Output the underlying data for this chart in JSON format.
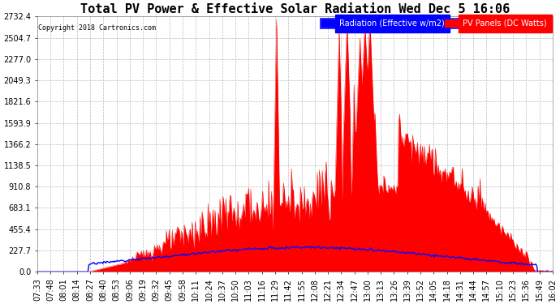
{
  "title": "Total PV Power & Effective Solar Radiation Wed Dec 5 16:06",
  "copyright": "Copyright 2018 Cartronics.com",
  "legend_blue": "Radiation (Effective w/m2)",
  "legend_red": "PV Panels (DC Watts)",
  "yticks": [
    0.0,
    227.7,
    455.4,
    683.1,
    910.8,
    1138.5,
    1366.2,
    1593.9,
    1821.6,
    2049.3,
    2277.0,
    2504.7,
    2732.4
  ],
  "ymax": 2732.4,
  "ymin": 0.0,
  "background_color": "#ffffff",
  "plot_bg_color": "#ffffff",
  "grid_color": "#bbbbbb",
  "red_color": "#ff0000",
  "blue_color": "#0000ff",
  "title_fontsize": 11,
  "tick_fontsize": 7,
  "n_points": 520,
  "xtick_labels": [
    "07:33",
    "07:48",
    "08:01",
    "08:14",
    "08:27",
    "08:40",
    "08:53",
    "09:06",
    "09:19",
    "09:32",
    "09:45",
    "09:58",
    "10:11",
    "10:24",
    "10:37",
    "10:50",
    "11:03",
    "11:16",
    "11:29",
    "11:42",
    "11:55",
    "12:08",
    "12:21",
    "12:34",
    "12:47",
    "13:00",
    "13:13",
    "13:26",
    "13:39",
    "13:52",
    "14:05",
    "14:18",
    "14:31",
    "14:44",
    "14:57",
    "15:10",
    "15:23",
    "15:36",
    "15:49",
    "16:02"
  ]
}
